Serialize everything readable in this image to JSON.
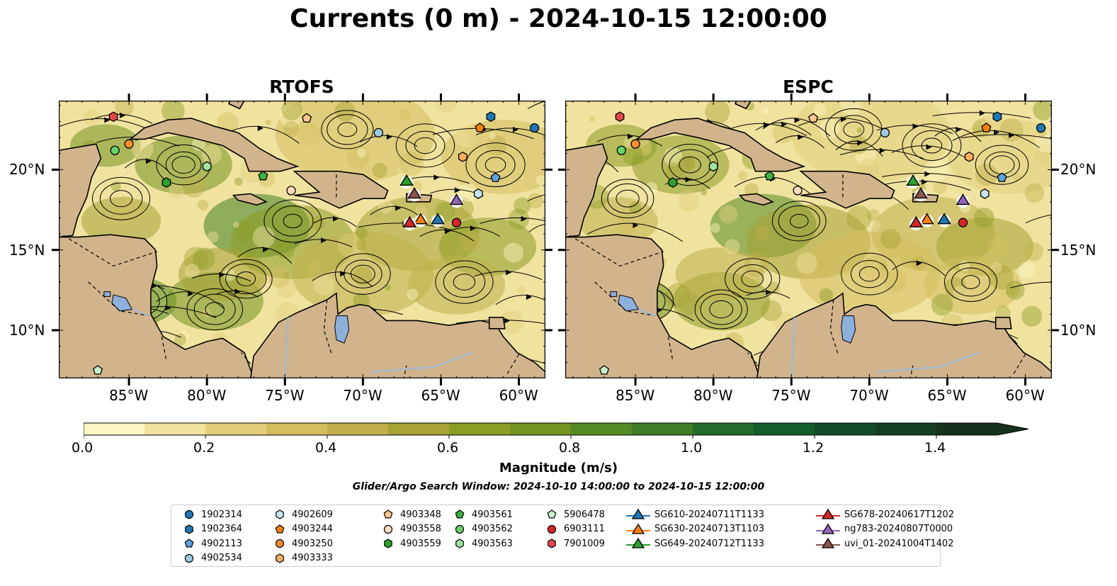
{
  "title": "Currents (0 m) - 2024-10-15 12:00:00",
  "panels": [
    {
      "title": "RTOFS",
      "flow_seed": 1
    },
    {
      "title": "ESPC",
      "flow_seed": 2
    }
  ],
  "map": {
    "lon_range": [
      -89.5,
      -58.3
    ],
    "lat_range": [
      7.0,
      24.3
    ],
    "lon_ticks": [
      "85°W",
      "80°W",
      "75°W",
      "70°W",
      "65°W",
      "60°W"
    ],
    "lat_ticks": [
      "20°N",
      "15°N",
      "10°N"
    ],
    "land_color": "#d2b48c",
    "lake_color": "#8db0dc"
  },
  "colorbar": {
    "label": "Magnitude (m/s)",
    "ticks": [
      "0.0",
      "0.2",
      "0.4",
      "0.6",
      "0.8",
      "1.0",
      "1.2",
      "1.4"
    ],
    "range": [
      0.0,
      1.5
    ],
    "extend": "max",
    "colors": [
      "#fbf6c2",
      "#f0e3a0",
      "#e2cf7c",
      "#d3bd5e",
      "#c0b04c",
      "#a6a235",
      "#8c9d27",
      "#72931f",
      "#568a22",
      "#3f7d25",
      "#246c2d",
      "#155c2c",
      "#134c29",
      "#163e24",
      "#17311e"
    ]
  },
  "search_window": "Glider/Argo Search Window: 2024-10-10 14:00:00 to 2024-10-15 12:00:00",
  "floats": [
    {
      "id": "1902314",
      "marker": "circle",
      "color": "#1f77b4",
      "lon": -59.0,
      "lat": 22.6
    },
    {
      "id": "1902364",
      "marker": "hexagon",
      "color": "#1f77b4",
      "lon": -61.8,
      "lat": 23.3
    },
    {
      "id": "4902113",
      "marker": "pentagon",
      "color": "#5fa2dd",
      "lon": -61.5,
      "lat": 19.5
    },
    {
      "id": "4902534",
      "marker": "circle",
      "color": "#9ecae1",
      "lon": -69.0,
      "lat": 22.3
    },
    {
      "id": "4902609",
      "marker": "hexagon",
      "color": "#c6e4f4",
      "lon": -62.6,
      "lat": 18.5
    },
    {
      "id": "4903244",
      "marker": "pentagon",
      "color": "#ff7f0e",
      "lon": -62.5,
      "lat": 22.6
    },
    {
      "id": "4903250",
      "marker": "circle",
      "color": "#ff8c2e",
      "lon": -85.0,
      "lat": 21.6
    },
    {
      "id": "4903333",
      "marker": "hexagon",
      "color": "#ffae5e",
      "lon": -63.6,
      "lat": 20.8
    },
    {
      "id": "4903348",
      "marker": "pentagon",
      "color": "#ffc58f",
      "lon": -73.6,
      "lat": 23.2
    },
    {
      "id": "4903558",
      "marker": "circle",
      "color": "#ffdcc0",
      "lon": -74.6,
      "lat": 18.7
    },
    {
      "id": "4903559",
      "marker": "hexagon",
      "color": "#2ca02c",
      "lon": -82.6,
      "lat": 19.2
    },
    {
      "id": "4903561",
      "marker": "pentagon",
      "color": "#3cb043",
      "lon": -76.4,
      "lat": 19.6
    },
    {
      "id": "4903562",
      "marker": "circle",
      "color": "#6bcf6b",
      "lon": -85.9,
      "lat": 21.2
    },
    {
      "id": "4903563",
      "marker": "hexagon",
      "color": "#a1e3a1",
      "lon": -80.0,
      "lat": 20.2
    },
    {
      "id": "5906478",
      "marker": "pentagon",
      "color": "#c8f2c8",
      "lon": -87.0,
      "lat": 7.5
    },
    {
      "id": "6903111",
      "marker": "circle",
      "color": "#d62728",
      "lon": -64.0,
      "lat": 16.7
    },
    {
      "id": "7901009",
      "marker": "hexagon",
      "color": "#e0474b",
      "lon": -86.0,
      "lat": 23.3
    }
  ],
  "gliders": [
    {
      "id": "SG610-20240711T1133",
      "color": "#1f77b4",
      "lon": -65.2,
      "lat": 16.9
    },
    {
      "id": "SG630-20240713T1103",
      "color": "#ff7f0e",
      "lon": -66.3,
      "lat": 16.9
    },
    {
      "id": "SG649-20240712T1133",
      "color": "#2ca02c",
      "lon": -67.2,
      "lat": 19.3
    },
    {
      "id": "SG678-20240617T1202",
      "color": "#d62728",
      "lon": -67.0,
      "lat": 16.7
    },
    {
      "id": "ng783-20240807T0000",
      "color": "#9467bd",
      "lon": -64.0,
      "lat": 18.1
    },
    {
      "id": "uvi_01-20241004T1402",
      "color": "#8c564b",
      "lon": -66.7,
      "lat": 18.5
    }
  ],
  "legend": {
    "columns": [
      [
        "1902314",
        "1902364",
        "4902113",
        "4902534"
      ],
      [
        "4902609",
        "4903244",
        "4903250",
        "4903333"
      ],
      [
        "4903348",
        "4903558",
        "4903559"
      ],
      [
        "4903561",
        "4903562",
        "4903563"
      ],
      [
        "5906478",
        "6903111",
        "7901009"
      ],
      [
        "SG610-20240711T1133",
        "SG630-20240713T1103",
        "SG649-20240712T1133"
      ],
      [
        "SG678-20240617T1202",
        "ng783-20240807T0000",
        "uvi_01-20241004T1402"
      ]
    ]
  }
}
